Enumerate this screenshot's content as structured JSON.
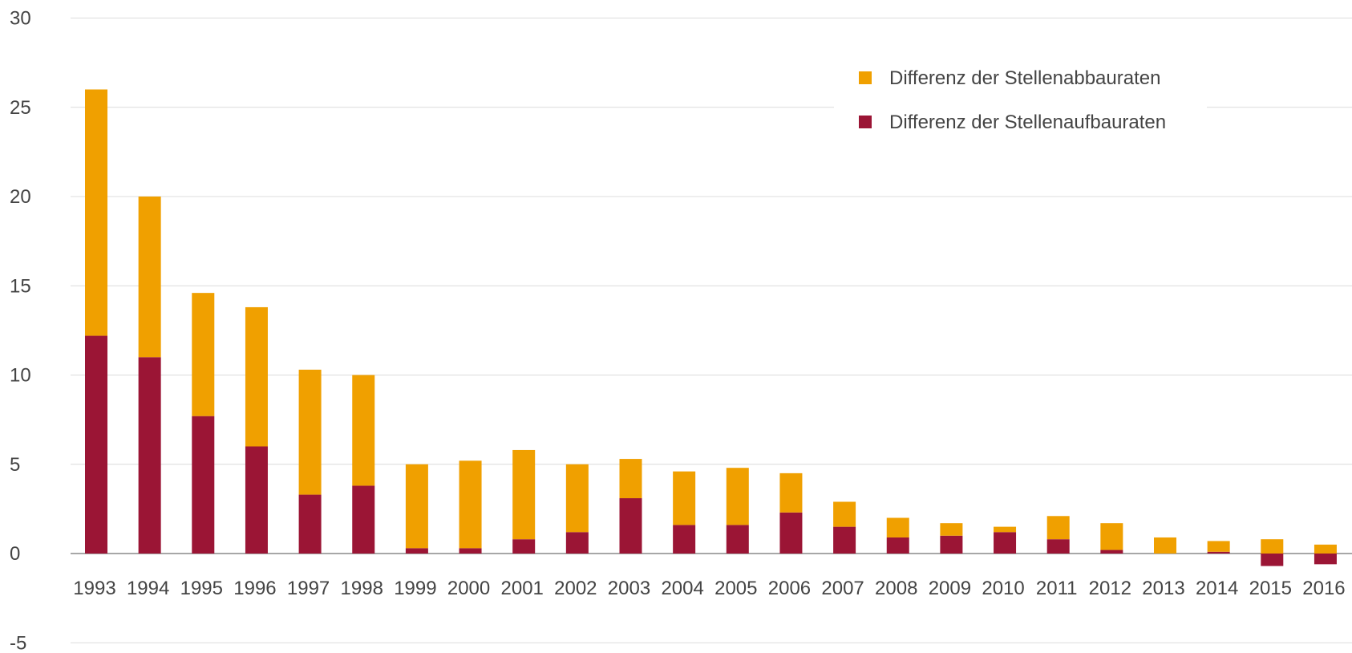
{
  "chart_data": {
    "type": "bar",
    "stacked": true,
    "categories": [
      "1993",
      "1994",
      "1995",
      "1996",
      "1997",
      "1998",
      "1999",
      "2000",
      "2001",
      "2002",
      "2003",
      "2004",
      "2005",
      "2006",
      "2007",
      "2008",
      "2009",
      "2010",
      "2011",
      "2012",
      "2013",
      "2014",
      "2015",
      "2016"
    ],
    "series": [
      {
        "name": "Differenz der Stellenaufbauraten",
        "color": "#9b1535",
        "values": [
          12.2,
          11.0,
          7.7,
          6.0,
          3.3,
          3.8,
          0.3,
          0.3,
          0.8,
          1.2,
          3.1,
          1.6,
          1.6,
          2.3,
          1.5,
          0.9,
          1.0,
          1.2,
          0.8,
          0.2,
          0.0,
          0.1,
          -0.7,
          -0.6
        ]
      },
      {
        "name": "Differenz der Stellenabbauraten",
        "color": "#f0a000",
        "values": [
          13.8,
          9.0,
          6.9,
          7.8,
          7.0,
          6.2,
          4.7,
          4.9,
          5.0,
          3.8,
          2.2,
          3.0,
          3.2,
          2.2,
          1.4,
          1.1,
          0.7,
          0.3,
          1.3,
          1.5,
          0.9,
          0.6,
          0.8,
          0.5
        ]
      }
    ],
    "ylim": [
      -5,
      30
    ],
    "yticks": [
      "30",
      "25",
      "20",
      "15",
      "10",
      "5",
      "0",
      "-5"
    ],
    "ytick_values": [
      30,
      25,
      20,
      15,
      10,
      5,
      0,
      -5
    ],
    "grid": true,
    "legend_position": "top-right",
    "legend_order": [
      1,
      0
    ],
    "title": "",
    "xlabel": "",
    "ylabel": ""
  }
}
